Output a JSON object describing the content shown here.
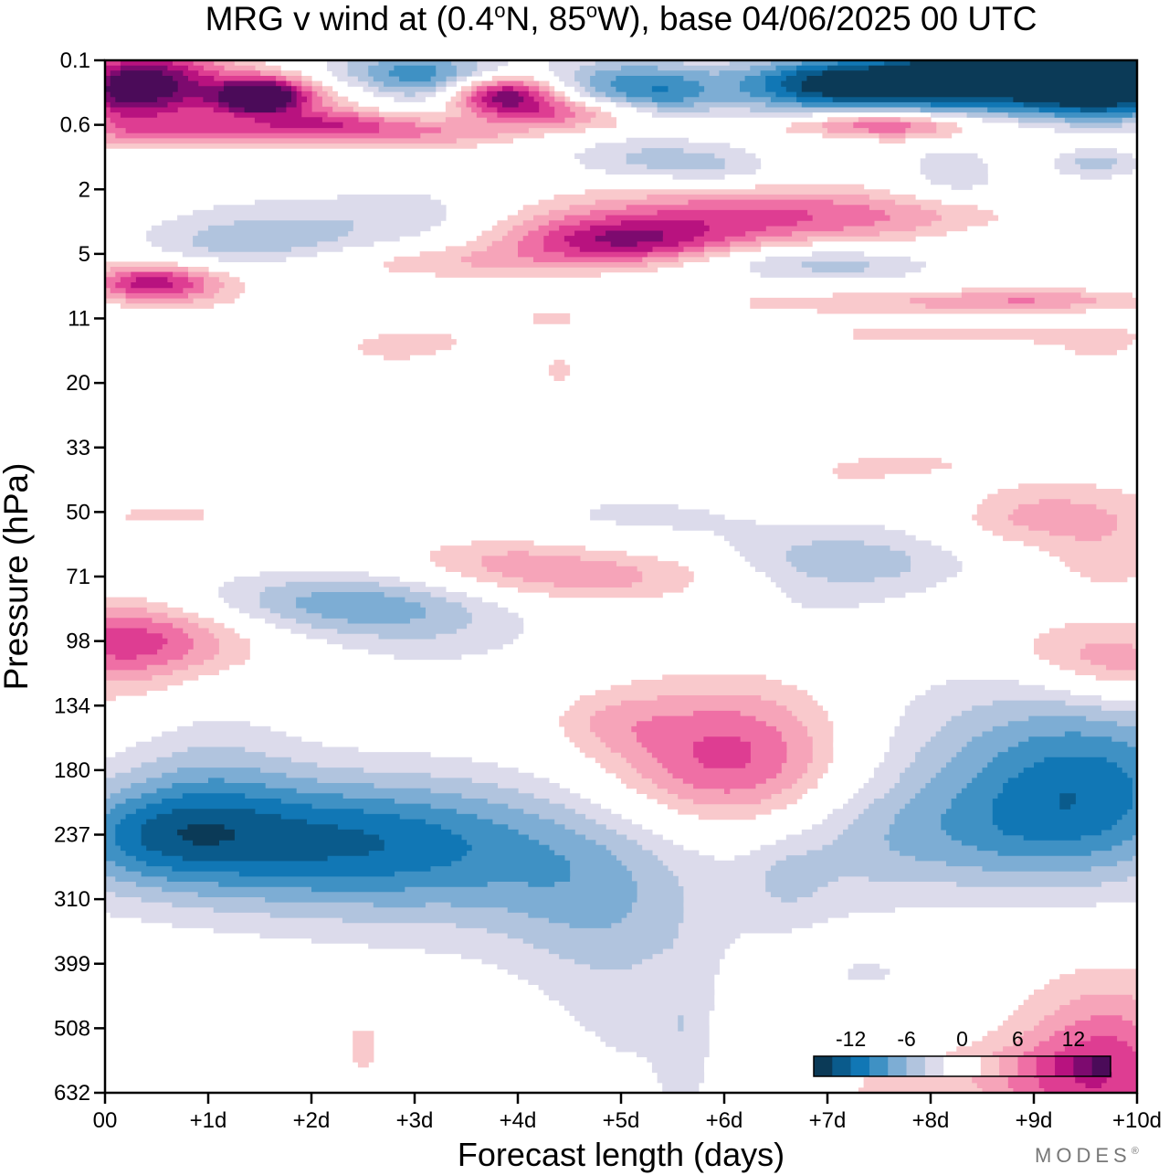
{
  "chart_data": {
    "type": "heatmap",
    "title": "MRG v wind at (0.4°N, 85°W),  base 04/06/2025  00 UTC",
    "title_parts": {
      "lead": "MRG v wind at (0.4",
      "deg": "o",
      "mid": "N, 85",
      "tail": "W),  base 04/06/2025  00 UTC"
    },
    "xlabel": "Forecast length (days)",
    "ylabel": "Pressure (hPa)",
    "x_ticks": [
      "00",
      "+1d",
      "+2d",
      "+3d",
      "+4d",
      "+5d",
      "+6d",
      "+7d",
      "+8d",
      "+9d",
      "+10d"
    ],
    "xlim": [
      0,
      10
    ],
    "y_ticks": [
      "0.1",
      "0.6",
      "2",
      "5",
      "11",
      "20",
      "33",
      "50",
      "71",
      "98",
      "134",
      "180",
      "237",
      "310",
      "399",
      "508",
      "632"
    ],
    "y_scale": "log-pressure (top = low pressure)",
    "colorbar": {
      "ticks": [
        "-12",
        "-6",
        "0",
        "6",
        "12"
      ],
      "levels": [
        -16,
        -14,
        -12,
        -10,
        -8,
        -6,
        -4,
        -2,
        0,
        2,
        4,
        6,
        8,
        10,
        12,
        14,
        16
      ],
      "colors": [
        "#0b3a57",
        "#0a5b8c",
        "#1177b5",
        "#3f91c4",
        "#7dadd4",
        "#b1c4de",
        "#dcdbeb",
        "#ffffff",
        "#ffffff",
        "#f9c9cc",
        "#f6a4b9",
        "#ef6fa5",
        "#de3d92",
        "#b8127f",
        "#7d0a6f",
        "#4b0b59"
      ],
      "placement": "bottom-right"
    },
    "features": [
      {
        "day": 1.8,
        "pressure": 237,
        "value": -11,
        "sign": "negative"
      },
      {
        "day": 9.9,
        "pressure": 200,
        "value": -9,
        "sign": "negative"
      },
      {
        "day": 6.0,
        "pressure": 180,
        "value": 9,
        "sign": "positive"
      },
      {
        "day": 0.5,
        "pressure": 98,
        "value": 7,
        "sign": "positive"
      },
      {
        "day": 2.2,
        "pressure": 82,
        "value": -7,
        "sign": "negative"
      },
      {
        "day": 4.2,
        "pressure": 75,
        "value": 5,
        "sign": "positive"
      },
      {
        "day": 9.0,
        "pressure": 0.25,
        "value": -16,
        "sign": "negative"
      },
      {
        "day": 4.0,
        "pressure": 0.3,
        "value": 15,
        "sign": "positive"
      },
      {
        "day": 1.5,
        "pressure": 0.3,
        "value": 15,
        "sign": "positive"
      },
      {
        "day": 5.0,
        "pressure": 4.5,
        "value": 11,
        "sign": "positive"
      },
      {
        "day": 0.5,
        "pressure": 7,
        "value": 10,
        "sign": "positive"
      },
      {
        "day": 9.8,
        "pressure": 550,
        "value": 9,
        "sign": "positive"
      }
    ],
    "grid": false
  },
  "footer": {
    "brand": "MODES",
    "brand_mark": "®"
  }
}
